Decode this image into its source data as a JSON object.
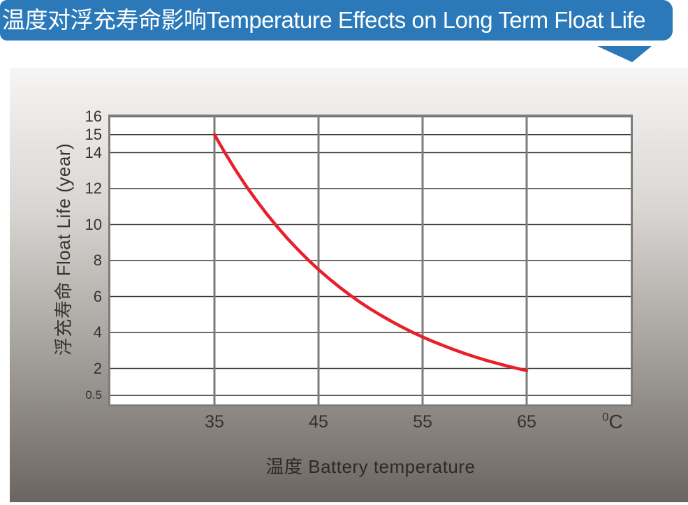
{
  "banner": {
    "title": "温度对浮充寿命影响Temperature Effects on Long Term Float Life",
    "bg_color": "#2b79b8",
    "text_color": "#ffffff"
  },
  "colors": {
    "curve_red": "#e8202b",
    "grid_horizontal": "#3a3a38",
    "grid_vertical": "#7c7c7a",
    "plot_border": "#7c7c7a",
    "tick_text": "#38322e",
    "panel_top": "#f6f5f4",
    "panel_bottom": "#6a6561"
  },
  "chart_data": {
    "type": "line",
    "title": "温度对浮充寿命影响Temperature Effects on Long Term Float Life",
    "xlabel": "温度  Battery temperature",
    "ylabel": "浮充寿命  Float Life (year)",
    "x_unit_sup": "0",
    "x_unit_main": "C",
    "xlim": [
      25,
      75
    ],
    "ylim": [
      0,
      16
    ],
    "x_ticks": [
      35,
      45,
      55,
      65
    ],
    "y_ticks": [
      16,
      15,
      14,
      12,
      10,
      8,
      6,
      4,
      2,
      0.5
    ],
    "grid": true,
    "legend": "none",
    "series": [
      {
        "name": "float-life-vs-temperature",
        "color": "#e8202b",
        "points": [
          [
            35,
            15.0
          ],
          [
            36,
            14.0
          ],
          [
            37,
            13.06
          ],
          [
            38,
            12.18
          ],
          [
            39,
            11.37
          ],
          [
            40,
            10.61
          ],
          [
            41,
            9.9
          ],
          [
            42,
            9.23
          ],
          [
            43,
            8.62
          ],
          [
            44,
            8.04
          ],
          [
            45,
            7.5
          ],
          [
            46,
            7.0
          ],
          [
            47,
            6.53
          ],
          [
            48,
            6.09
          ],
          [
            49,
            5.68
          ],
          [
            50,
            5.3
          ],
          [
            51,
            4.95
          ],
          [
            52,
            4.62
          ],
          [
            53,
            4.31
          ],
          [
            54,
            4.02
          ],
          [
            55,
            3.75
          ],
          [
            56,
            3.5
          ],
          [
            57,
            3.27
          ],
          [
            58,
            3.05
          ],
          [
            59,
            2.84
          ],
          [
            60,
            2.65
          ],
          [
            61,
            2.47
          ],
          [
            62,
            2.31
          ],
          [
            63,
            2.15
          ],
          [
            64,
            2.01
          ],
          [
            65,
            1.88
          ]
        ]
      }
    ]
  }
}
